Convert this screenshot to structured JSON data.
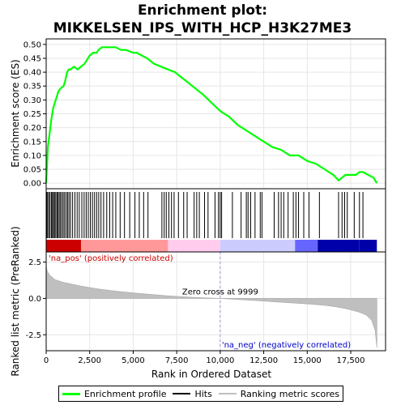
{
  "chart_data": {
    "type": "line",
    "title": "Enrichment plot:\nMIKKELSEN_IPS_WITH_HCP_H3K27ME3",
    "title_lines": [
      "Enrichment plot:",
      "MIKKELSEN_IPS_WITH_HCP_H3K27ME3"
    ],
    "top_panel": {
      "ylabel": "Enrichment score (ES)",
      "ylim": [
        -0.02,
        0.52
      ],
      "yticks": [
        0.0,
        0.05,
        0.1,
        0.15,
        0.2,
        0.25,
        0.3,
        0.35,
        0.4,
        0.45,
        0.5
      ],
      "ytick_labels": [
        "0.00",
        "0.05",
        "0.10",
        "0.15",
        "0.20",
        "0.25",
        "0.30",
        "0.35",
        "0.40",
        "0.45",
        "0.50"
      ],
      "series": [
        {
          "name": "Enrichment profile",
          "color": "#00ff00",
          "x": [
            0,
            100,
            200,
            300,
            400,
            500,
            600,
            700,
            800,
            1000,
            1100,
            1200,
            1300,
            1400,
            1600,
            1800,
            2000,
            2200,
            2300,
            2500,
            2700,
            2900,
            3000,
            3200,
            3400,
            3600,
            3800,
            4000,
            4300,
            4600,
            5000,
            5200,
            5500,
            5800,
            6200,
            6600,
            7000,
            7400,
            7800,
            8200,
            8600,
            9000,
            9500,
            10000,
            10500,
            11000,
            11500,
            12000,
            12500,
            13000,
            13500,
            14000,
            14500,
            15000,
            15500,
            16000,
            16500,
            16800,
            17000,
            17200,
            17500,
            17800,
            18000,
            18200,
            18500,
            18800,
            19000
          ],
          "y": [
            0.0,
            0.13,
            0.18,
            0.23,
            0.27,
            0.29,
            0.31,
            0.33,
            0.34,
            0.35,
            0.37,
            0.4,
            0.41,
            0.41,
            0.42,
            0.41,
            0.42,
            0.43,
            0.44,
            0.46,
            0.47,
            0.47,
            0.48,
            0.49,
            0.49,
            0.49,
            0.49,
            0.49,
            0.48,
            0.48,
            0.47,
            0.47,
            0.46,
            0.45,
            0.43,
            0.42,
            0.41,
            0.4,
            0.38,
            0.36,
            0.34,
            0.32,
            0.29,
            0.26,
            0.24,
            0.21,
            0.19,
            0.17,
            0.15,
            0.13,
            0.12,
            0.1,
            0.1,
            0.08,
            0.07,
            0.05,
            0.03,
            0.01,
            0.02,
            0.03,
            0.03,
            0.03,
            0.04,
            0.04,
            0.03,
            0.02,
            0.0
          ]
        }
      ]
    },
    "hits_panel": {
      "series_name": "Hits",
      "hit_ranks": [
        30,
        80,
        150,
        220,
        300,
        360,
        420,
        480,
        550,
        620,
        680,
        750,
        820,
        900,
        980,
        1060,
        1150,
        1230,
        1310,
        1400,
        1520,
        1650,
        1780,
        1900,
        2050,
        2180,
        2300,
        2420,
        2540,
        2660,
        2780,
        2900,
        3020,
        3150,
        3300,
        3480,
        3650,
        3820,
        4000,
        4250,
        4500,
        4800,
        5100,
        5350,
        5600,
        5850,
        6650,
        6780,
        6900,
        7050,
        7200,
        7350,
        7600,
        7900,
        8100,
        8500,
        8650,
        8800,
        9100,
        9300,
        9700,
        9900,
        10000,
        10080,
        10700,
        11200,
        11500,
        11600,
        11750,
        12000,
        12300,
        12400,
        13100,
        13350,
        13500,
        13650,
        13900,
        14200,
        14350,
        14500,
        14800,
        15100,
        15700,
        16800,
        17000,
        17150,
        17300,
        17700,
        18000,
        18200
      ],
      "heatmap_colors": [
        "#cc0000",
        "#ff9999",
        "#ffccee",
        "#ccccff",
        "#6666ff",
        "#0000aa"
      ],
      "heatmap_breaks": [
        0,
        2000,
        7000,
        10000,
        14300,
        15600,
        18000,
        19000
      ]
    },
    "bottom_panel": {
      "ylabel": "Ranked list metric (PreRanked)",
      "xlabel": "Rank in Ordered Dataset",
      "ylim": [
        -3.6,
        3.2
      ],
      "yticks": [
        -2.5,
        0.0,
        2.5
      ],
      "ytick_labels": [
        "-2.5",
        "0.0",
        "2.5"
      ],
      "series_name": "Ranking metric scores",
      "color": "#bfbfbf",
      "x": [
        0,
        50,
        200,
        500,
        1000,
        2000,
        3000,
        4000,
        5000,
        6000,
        7000,
        8000,
        9000,
        9999,
        11000,
        12000,
        13000,
        14000,
        15000,
        16000,
        16500,
        17000,
        17500,
        18000,
        18400,
        18700,
        18900,
        19000
      ],
      "y": [
        2.3,
        1.9,
        1.6,
        1.3,
        1.1,
        0.85,
        0.65,
        0.5,
        0.38,
        0.28,
        0.18,
        0.1,
        0.04,
        0.0,
        -0.07,
        -0.14,
        -0.22,
        -0.3,
        -0.38,
        -0.48,
        -0.55,
        -0.65,
        -0.78,
        -0.95,
        -1.15,
        -1.5,
        -2.2,
        -3.4
      ],
      "zero_cross_label": "Zero cross at 9999",
      "zero_cross_rank": 9999,
      "na_pos_label": "'na_pos' (positively correlated)",
      "na_neg_label": "'na_neg' (negatively correlated)",
      "na_pos_color": "#cc0000",
      "na_neg_color": "#0000cc"
    },
    "xlim": [
      0,
      19500
    ],
    "xticks": [
      0,
      2500,
      5000,
      7500,
      10000,
      12500,
      15000,
      17500
    ],
    "xtick_labels": [
      "0",
      "2,500",
      "5,000",
      "7,500",
      "10,000",
      "12,500",
      "15,000",
      "17,500"
    ],
    "grid": true,
    "legend_position": "bottom",
    "legend": [
      {
        "label": "Enrichment profile",
        "color": "#00ff00"
      },
      {
        "label": "Hits",
        "color": "#000000"
      },
      {
        "label": "Ranking metric scores",
        "color": "#bfbfbf"
      }
    ]
  }
}
